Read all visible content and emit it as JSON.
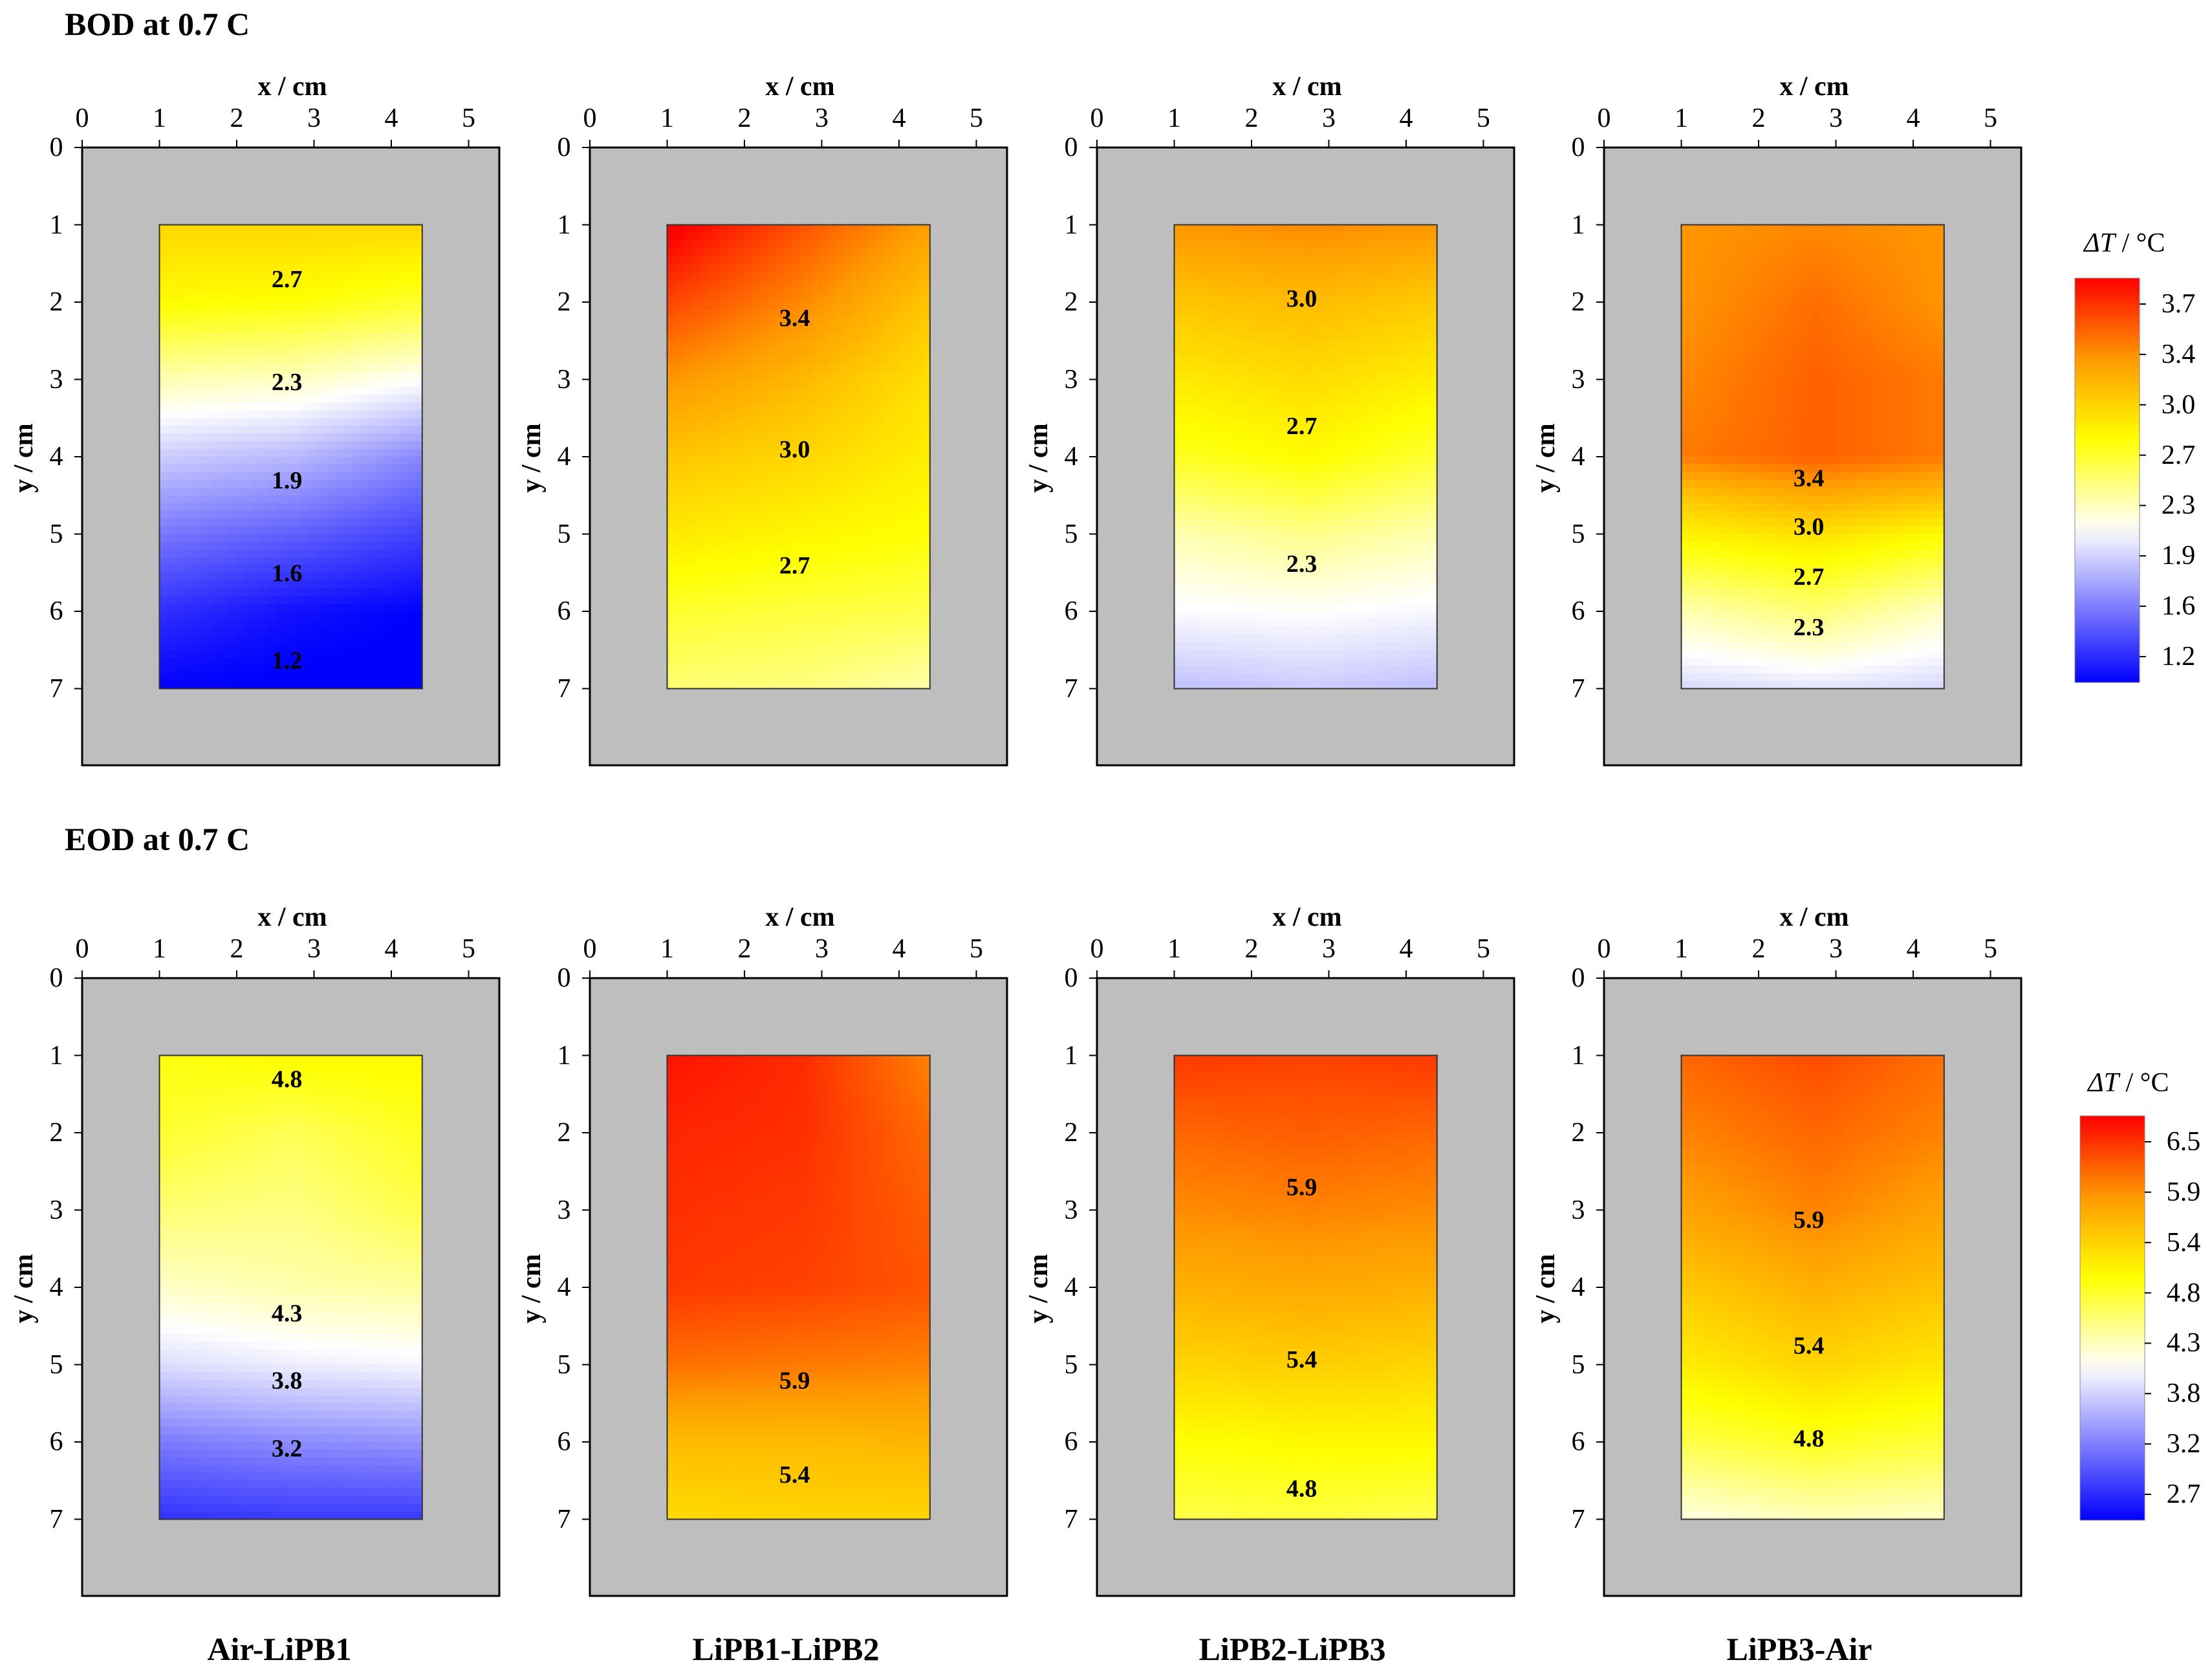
{
  "sections": {
    "bod": "BOD at 0.7 C",
    "eod": "EOD at 0.7 C"
  },
  "axes": {
    "xlabel": "x / cm",
    "ylabel": "y / cm"
  },
  "pair_labels": [
    "Air-LiPB1",
    "LiPB1-LiPB2",
    "LiPB2-LiPB3",
    "LiPB3-Air"
  ],
  "colorbar_title_symbol": "ΔT",
  "colorbar_title_unit": " / °C",
  "colors": {
    "frame": "#bebebe",
    "cold": "#0000ff",
    "neutral": "#ffffff",
    "warm": "#ffff00",
    "orange": "#ff9900",
    "hot": "#ff0000"
  },
  "chart_data": [
    {
      "type": "heatmap",
      "title": "BOD at 0.7 C",
      "subtitle": "Air-LiPB1",
      "xlabel": "x / cm",
      "ylabel": "y / cm",
      "xlim": [
        0,
        5.4
      ],
      "ylim": [
        0,
        8
      ],
      "xticks": [
        0,
        1,
        2,
        3,
        4,
        5
      ],
      "yticks": [
        0,
        1,
        2,
        3,
        4,
        5,
        6,
        7
      ],
      "grid": {
        "x": [
          1,
          2.75,
          4.4
        ],
        "y": [
          1,
          2,
          3,
          4,
          5,
          6,
          7,
          7
        ]
      },
      "values": [
        [
          2.95,
          2.95,
          2.95
        ],
        [
          2.75,
          2.72,
          2.62
        ],
        [
          2.3,
          2.26,
          2.12
        ],
        [
          1.9,
          1.82,
          1.62
        ],
        [
          1.55,
          1.45,
          1.32
        ],
        [
          1.25,
          1.12,
          1.05
        ],
        [
          1.05,
          1.02,
          1.0
        ],
        [
          1.05,
          1.02,
          1.0
        ]
      ],
      "contour_labels": [
        {
          "text": "2.7",
          "x": 2.65,
          "y": 1.7
        },
        {
          "text": "2.3",
          "x": 2.65,
          "y": 3.03
        },
        {
          "text": "1.9",
          "x": 2.65,
          "y": 4.3
        },
        {
          "text": "1.6",
          "x": 2.65,
          "y": 5.5
        },
        {
          "text": "1.2",
          "x": 2.65,
          "y": 6.63
        }
      ]
    },
    {
      "type": "heatmap",
      "title": "BOD at 0.7 C",
      "subtitle": "LiPB1-LiPB2",
      "xlabel": "x / cm",
      "ylabel": "y / cm",
      "xlim": [
        0,
        5.4
      ],
      "ylim": [
        0,
        8
      ],
      "xticks": [
        0,
        1,
        2,
        3,
        4,
        5
      ],
      "yticks": [
        0,
        1,
        2,
        3,
        4,
        5,
        6,
        7
      ],
      "grid": {
        "x": [
          1,
          2.75,
          4.4
        ],
        "y": [
          1,
          2,
          3,
          4,
          5,
          6,
          7,
          7
        ]
      },
      "values": [
        [
          3.9,
          3.55,
          3.25
        ],
        [
          3.6,
          3.35,
          3.05
        ],
        [
          3.3,
          3.12,
          2.9
        ],
        [
          3.05,
          2.95,
          2.82
        ],
        [
          2.85,
          2.78,
          2.72
        ],
        [
          2.62,
          2.58,
          2.55
        ],
        [
          2.45,
          2.42,
          2.32
        ],
        [
          2.45,
          2.42,
          2.32
        ]
      ],
      "contour_labels": [
        {
          "text": "3.4",
          "x": 2.65,
          "y": 2.2
        },
        {
          "text": "3.0",
          "x": 2.65,
          "y": 3.9
        },
        {
          "text": "2.7",
          "x": 2.65,
          "y": 5.4
        }
      ]
    },
    {
      "type": "heatmap",
      "title": "BOD at 0.7 C",
      "subtitle": "LiPB2-LiPB3",
      "xlabel": "x / cm",
      "ylabel": "y / cm",
      "xlim": [
        0,
        5.4
      ],
      "ylim": [
        0,
        8
      ],
      "xticks": [
        0,
        1,
        2,
        3,
        4,
        5
      ],
      "yticks": [
        0,
        1,
        2,
        3,
        4,
        5,
        6,
        7
      ],
      "grid": {
        "x": [
          1,
          2.75,
          4.4
        ],
        "y": [
          1,
          2,
          3,
          4,
          5,
          6,
          7,
          7
        ]
      },
      "values": [
        [
          3.3,
          3.35,
          3.3
        ],
        [
          3.05,
          3.1,
          3.02
        ],
        [
          2.85,
          2.92,
          2.82
        ],
        [
          2.65,
          2.75,
          2.6
        ],
        [
          2.3,
          2.4,
          2.3
        ],
        [
          2.1,
          2.12,
          2.08
        ],
        [
          1.85,
          1.9,
          1.85
        ],
        [
          1.85,
          1.9,
          1.85
        ]
      ],
      "contour_labels": [
        {
          "text": "3.0",
          "x": 2.65,
          "y": 1.95
        },
        {
          "text": "2.7",
          "x": 2.65,
          "y": 3.6
        },
        {
          "text": "2.3",
          "x": 2.65,
          "y": 5.38
        }
      ]
    },
    {
      "type": "heatmap",
      "title": "BOD at 0.7 C",
      "subtitle": "LiPB3-Air",
      "xlabel": "x / cm",
      "ylabel": "y / cm",
      "xlim": [
        0,
        5.4
      ],
      "ylim": [
        0,
        8
      ],
      "xticks": [
        0,
        1,
        2,
        3,
        4,
        5
      ],
      "yticks": [
        0,
        1,
        2,
        3,
        4,
        5,
        6,
        7
      ],
      "grid": {
        "x": [
          1,
          2.75,
          4.4
        ],
        "y": [
          1,
          2,
          3,
          4,
          4.5,
          5,
          6,
          7,
          7
        ]
      },
      "values": [
        [
          3.3,
          3.35,
          3.3
        ],
        [
          3.3,
          3.45,
          3.3
        ],
        [
          3.35,
          3.5,
          3.4
        ],
        [
          3.4,
          3.5,
          3.4
        ],
        [
          3.05,
          3.2,
          3.1
        ],
        [
          2.8,
          2.9,
          2.75
        ],
        [
          2.3,
          2.45,
          2.25
        ],
        [
          1.95,
          2.0,
          1.95
        ],
        [
          1.95,
          2.0,
          1.95
        ]
      ],
      "contour_labels": [
        {
          "text": "3.4",
          "x": 2.65,
          "y": 4.27
        },
        {
          "text": "3.0",
          "x": 2.65,
          "y": 4.9
        },
        {
          "text": "2.7",
          "x": 2.65,
          "y": 5.55
        },
        {
          "text": "2.3",
          "x": 2.65,
          "y": 6.2
        }
      ]
    },
    {
      "type": "heatmap",
      "title": "EOD at 0.7 C",
      "subtitle": "Air-LiPB1",
      "xlabel": "x / cm",
      "ylabel": "y / cm",
      "xlim": [
        0,
        5.4
      ],
      "ylim": [
        0,
        8
      ],
      "xticks": [
        0,
        1,
        2,
        3,
        4,
        5
      ],
      "yticks": [
        0,
        1,
        2,
        3,
        4,
        5,
        6,
        7
      ],
      "grid": {
        "x": [
          1,
          2.75,
          4.4
        ],
        "y": [
          1,
          2,
          3,
          4,
          5,
          6,
          7,
          7
        ]
      },
      "values": [
        [
          4.95,
          5.05,
          5.05
        ],
        [
          4.85,
          4.7,
          4.9
        ],
        [
          4.6,
          4.55,
          4.75
        ],
        [
          4.3,
          4.4,
          4.45
        ],
        [
          3.9,
          4.0,
          4.05
        ],
        [
          3.3,
          3.4,
          3.45
        ],
        [
          2.85,
          2.9,
          2.9
        ],
        [
          2.85,
          2.9,
          2.9
        ]
      ],
      "contour_labels": [
        {
          "text": "4.8",
          "x": 2.65,
          "y": 1.3
        },
        {
          "text": "4.3",
          "x": 2.65,
          "y": 4.33
        },
        {
          "text": "3.8",
          "x": 2.65,
          "y": 5.2
        },
        {
          "text": "3.2",
          "x": 2.65,
          "y": 6.08
        }
      ]
    },
    {
      "type": "heatmap",
      "title": "EOD at 0.7 C",
      "subtitle": "LiPB1-LiPB2",
      "xlabel": "x / cm",
      "ylabel": "y / cm",
      "xlim": [
        0,
        5.4
      ],
      "ylim": [
        0,
        8
      ],
      "xticks": [
        0,
        1,
        2,
        3,
        4,
        5
      ],
      "yticks": [
        0,
        1,
        2,
        3,
        4,
        5,
        6,
        7
      ],
      "grid": {
        "x": [
          1,
          2.75,
          4.4
        ],
        "y": [
          1,
          2,
          3,
          4,
          5,
          6,
          7,
          7
        ]
      },
      "values": [
        [
          6.55,
          6.42,
          5.95
        ],
        [
          6.45,
          6.4,
          6.08
        ],
        [
          6.4,
          6.35,
          6.15
        ],
        [
          6.35,
          6.3,
          6.2
        ],
        [
          6.05,
          6.0,
          5.95
        ],
        [
          5.55,
          5.55,
          5.6
        ],
        [
          5.3,
          5.35,
          5.35
        ],
        [
          5.3,
          5.35,
          5.35
        ]
      ],
      "contour_labels": [
        {
          "text": "5.9",
          "x": 2.65,
          "y": 5.2
        },
        {
          "text": "5.4",
          "x": 2.65,
          "y": 6.42
        }
      ]
    },
    {
      "type": "heatmap",
      "title": "EOD at 0.7 C",
      "subtitle": "LiPB2-LiPB3",
      "xlabel": "x / cm",
      "ylabel": "y / cm",
      "xlim": [
        0,
        5.4
      ],
      "ylim": [
        0,
        8
      ],
      "xticks": [
        0,
        1,
        2,
        3,
        4,
        5
      ],
      "yticks": [
        0,
        1,
        2,
        3,
        4,
        5,
        6,
        7
      ],
      "grid": {
        "x": [
          1,
          2.75,
          4.4
        ],
        "y": [
          1,
          2,
          3,
          4,
          5,
          6,
          7,
          7
        ]
      },
      "values": [
        [
          6.35,
          6.3,
          6.35
        ],
        [
          6.1,
          6.15,
          6.1
        ],
        [
          5.9,
          5.95,
          5.9
        ],
        [
          5.65,
          5.7,
          5.65
        ],
        [
          5.35,
          5.4,
          5.35
        ],
        [
          5.0,
          5.05,
          5.05
        ],
        [
          4.75,
          4.78,
          4.72
        ],
        [
          4.75,
          4.78,
          4.72
        ]
      ],
      "contour_labels": [
        {
          "text": "5.9",
          "x": 2.65,
          "y": 2.7
        },
        {
          "text": "5.4",
          "x": 2.65,
          "y": 4.93
        },
        {
          "text": "4.8",
          "x": 2.65,
          "y": 6.6
        }
      ]
    },
    {
      "type": "heatmap",
      "title": "EOD at 0.7 C",
      "subtitle": "LiPB3-Air",
      "xlabel": "x / cm",
      "ylabel": "y / cm",
      "xlim": [
        0,
        5.4
      ],
      "ylim": [
        0,
        8
      ],
      "xticks": [
        0,
        1,
        2,
        3,
        4,
        5
      ],
      "yticks": [
        0,
        1,
        2,
        3,
        4,
        5,
        6,
        7
      ],
      "grid": {
        "x": [
          1,
          2.75,
          4.4
        ],
        "y": [
          1,
          2,
          3,
          4,
          5,
          6,
          7,
          7
        ]
      },
      "values": [
        [
          6.1,
          6.25,
          6.05
        ],
        [
          5.95,
          6.1,
          5.95
        ],
        [
          5.75,
          5.95,
          5.75
        ],
        [
          5.45,
          5.65,
          5.5
        ],
        [
          5.15,
          5.35,
          5.2
        ],
        [
          4.75,
          4.9,
          4.8
        ],
        [
          4.2,
          4.35,
          4.3
        ],
        [
          4.2,
          4.35,
          4.3
        ]
      ],
      "contour_labels": [
        {
          "text": "5.9",
          "x": 2.65,
          "y": 3.12
        },
        {
          "text": "5.4",
          "x": 2.65,
          "y": 4.75
        },
        {
          "text": "4.8",
          "x": 2.65,
          "y": 5.95
        }
      ]
    }
  ],
  "colorbars": [
    {
      "ticks": [
        "3.7",
        "3.4",
        "3.0",
        "2.7",
        "2.3",
        "1.9",
        "1.6",
        "1.2"
      ],
      "range": [
        1.05,
        3.85
      ]
    },
    {
      "ticks": [
        "6.5",
        "5.9",
        "5.4",
        "4.8",
        "4.3",
        "3.8",
        "3.2",
        "2.7"
      ],
      "range": [
        2.55,
        6.65
      ]
    }
  ]
}
